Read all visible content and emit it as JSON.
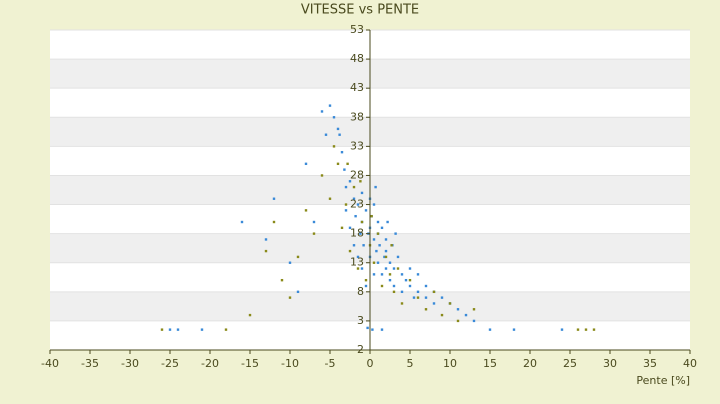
{
  "chart_data": {
    "type": "scatter",
    "title": "VITESSE vs PENTE",
    "x_label": "Pente [%]",
    "xlim": [
      -40,
      40
    ],
    "xticks": [
      -40,
      -35,
      -30,
      -25,
      -20,
      -15,
      -10,
      -5,
      0,
      5,
      10,
      15,
      20,
      25,
      30,
      35,
      40
    ],
    "ylim": [
      -2,
      53
    ],
    "yticks": [
      53,
      48,
      43,
      38,
      33,
      28,
      23,
      18,
      13,
      8,
      3,
      -2
    ],
    "grid": true,
    "series": [
      {
        "name": "Série 1",
        "color": "#3a8ad8",
        "x": [
          -25,
          -24,
          -21,
          -16,
          -13,
          -12,
          -10,
          -9,
          -8,
          -7,
          -6,
          -5.5,
          -5,
          -4.5,
          -4,
          -3.8,
          -3.5,
          -3.2,
          -3,
          -3,
          -2.5,
          -2.5,
          -2,
          -2,
          -1.8,
          -1.5,
          -1.5,
          -1.2,
          -1,
          -1,
          -1,
          -0.8,
          -0.5,
          -0.5,
          -0.2,
          0,
          0,
          0,
          0.2,
          0.5,
          0.5,
          0.5,
          0.8,
          1,
          1,
          1,
          1.2,
          1.5,
          1.5,
          1.8,
          2,
          2,
          2,
          2.5,
          2.5,
          2.8,
          3,
          3,
          3.5,
          4,
          4,
          4.5,
          5,
          5,
          5.5,
          6,
          6,
          7,
          7,
          8,
          8,
          9,
          10,
          11,
          12,
          13,
          15,
          18,
          24,
          1.5,
          0.3,
          -0.3,
          2.2,
          3.2,
          0.7
        ],
        "values": [
          1.5,
          1.5,
          1.5,
          20,
          17,
          24,
          13,
          8,
          30,
          20,
          39,
          35,
          40,
          38,
          36,
          35,
          32,
          29,
          26,
          22,
          27,
          19,
          24,
          16,
          21,
          23,
          14,
          18,
          25,
          20,
          12,
          16,
          22,
          9,
          18,
          24,
          19,
          14,
          21,
          17,
          23,
          11,
          15,
          20,
          13,
          18,
          16,
          19,
          11,
          14,
          17,
          12,
          15,
          13,
          10,
          16,
          12,
          9,
          14,
          11,
          8,
          10,
          9,
          12,
          7,
          8,
          11,
          7,
          9,
          8,
          6,
          7,
          6,
          5,
          4,
          3,
          1.5,
          1.5,
          1.5,
          1.5,
          1.5,
          1.8,
          20,
          18,
          26
        ]
      },
      {
        "name": "Série 2",
        "color": "#8a8a1a",
        "x": [
          -26,
          -18,
          -15,
          -13,
          -12,
          -11,
          -10,
          -9,
          -8,
          -7,
          -6,
          -5,
          -4.5,
          -4,
          -3.5,
          -3,
          -2.5,
          -2,
          -1.5,
          -1,
          -0.5,
          0,
          0.5,
          1,
          1.5,
          2,
          2.5,
          3,
          3.5,
          4,
          5,
          6,
          7,
          8,
          9,
          10,
          11,
          13,
          26,
          27,
          28,
          -2.8,
          -1.2,
          0.2,
          2.7
        ],
        "values": [
          1.5,
          1.5,
          4,
          15,
          20,
          10,
          7,
          14,
          22,
          18,
          28,
          24,
          33,
          30,
          19,
          23,
          15,
          26,
          12,
          20,
          10,
          16,
          13,
          18,
          9,
          14,
          11,
          8,
          12,
          6,
          10,
          7,
          5,
          8,
          4,
          6,
          3,
          5,
          1.5,
          1.5,
          1.5,
          30,
          27,
          21,
          16
        ]
      }
    ]
  }
}
